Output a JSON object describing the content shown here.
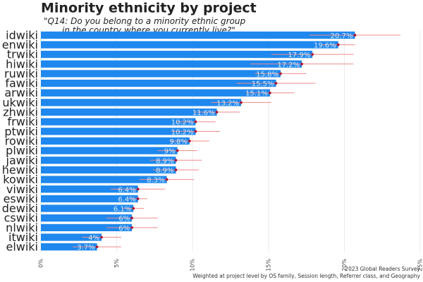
{
  "chart_data": {
    "type": "bar",
    "orientation": "horizontal",
    "title": "Minority ethnicity by project",
    "subtitle": "\"Q14: Do you belong to a minority ethnic group\nin the country where you currently live?\"",
    "caption": "2023 Global Readers Survey",
    "note": "Weighted at project level by OS family, Session length, Referrer class, and Geography",
    "categories": [
      "idwiki",
      "enwiki",
      "trwiki",
      "hiwiki",
      "ruwiki",
      "fawiki",
      "arwiki",
      "ukwiki",
      "zhwiki",
      "frwiki",
      "ptwiki",
      "rowiki",
      "plwiki",
      "jawiki",
      "hewiki",
      "kowiki",
      "viwiki",
      "eswiki",
      "dewiki",
      "cswiki",
      "nlwiki",
      "itwiki",
      "elwiki"
    ],
    "values": [
      20.7,
      19.6,
      17.9,
      17.2,
      15.8,
      15.5,
      15.1,
      13.2,
      11.6,
      10.2,
      10.2,
      9.8,
      9,
      8.9,
      8.9,
      8.3,
      6.4,
      6.4,
      6.1,
      6,
      6,
      4,
      3.7
    ],
    "value_labels": [
      "20.7%",
      "19.6%",
      "17.9%",
      "17.2%",
      "15.8%",
      "15.5%",
      "15.1%",
      "13.2%",
      "11.6%",
      "10.2%",
      "10.2%",
      "9.8%",
      "9%",
      "8.9%",
      "8.9%",
      "8.3%",
      "6.4%",
      "6.4%",
      "6.1%",
      "6%",
      "6%",
      "4%",
      "3.7%"
    ],
    "errors": [
      3,
      1.1,
      2.7,
      3.4,
      1.7,
      2.6,
      1.6,
      2,
      1.5,
      1.3,
      1.6,
      1.3,
      1.3,
      1.7,
      1.5,
      1.8,
      1.8,
      0.6,
      0.7,
      1.7,
      1.7,
      1.3,
      1.6
    ],
    "color": "#1e88ee",
    "error_color": "#f08a8a",
    "xlim": [
      0,
      25
    ],
    "xticks": [
      {
        "value": 0,
        "label": "0%"
      },
      {
        "value": 5,
        "label": "5%"
      },
      {
        "value": 10,
        "label": "10%"
      },
      {
        "value": 15,
        "label": "15%"
      },
      {
        "value": 20,
        "label": "20%"
      },
      {
        "value": 25,
        "label": "25%"
      }
    ],
    "grid": true
  }
}
